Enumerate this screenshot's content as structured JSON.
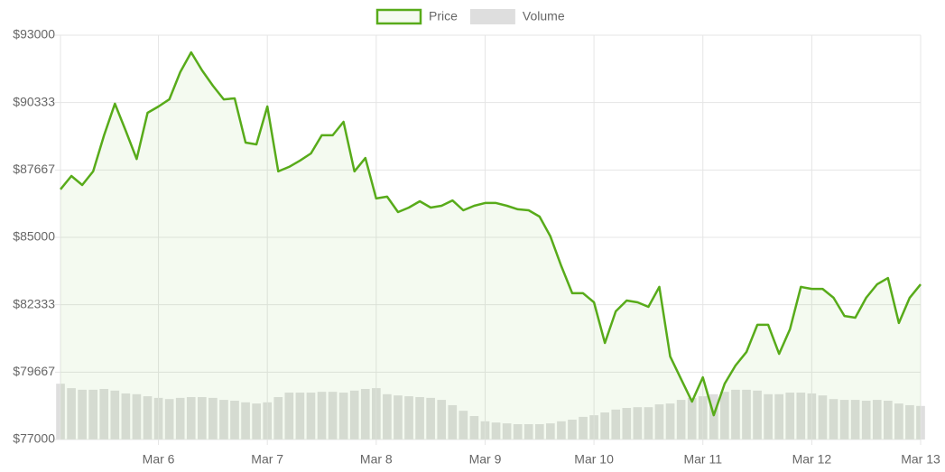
{
  "chart_data": {
    "type": "line",
    "x": [
      5.1,
      5.2,
      5.3,
      5.4,
      5.5,
      5.6,
      5.7,
      5.8,
      5.9,
      6.0,
      6.1,
      6.2,
      6.3,
      6.4,
      6.5,
      6.6,
      6.7,
      6.8,
      6.9,
      7.0,
      7.1,
      7.2,
      7.3,
      7.4,
      7.5,
      7.6,
      7.7,
      7.8,
      7.9,
      8.0,
      8.1,
      8.2,
      8.3,
      8.4,
      8.5,
      8.6,
      8.7,
      8.8,
      8.9,
      9.0,
      9.1,
      9.2,
      9.3,
      9.4,
      9.5,
      9.6,
      9.7,
      9.8,
      9.9,
      10.0,
      10.1,
      10.2,
      10.3,
      10.4,
      10.5,
      10.6,
      10.7,
      10.8,
      10.9,
      11.0,
      11.1,
      11.2,
      11.3,
      11.4,
      11.5,
      11.6,
      11.7,
      11.8,
      11.9,
      12.0,
      12.1,
      12.2,
      12.3,
      12.4,
      12.5,
      12.6,
      12.7,
      12.8,
      12.9,
      13.0
    ],
    "series": [
      {
        "name": "Price",
        "type": "line",
        "color": "#58ab1a",
        "fill": "rgba(110,190,60,0.08)",
        "values": [
          86900,
          87430,
          87070,
          87610,
          89040,
          90290,
          89210,
          88100,
          89930,
          90180,
          90460,
          91540,
          92320,
          91610,
          91000,
          90460,
          90500,
          88750,
          88680,
          90180,
          87610,
          87790,
          88040,
          88320,
          89040,
          89040,
          89570,
          87610,
          88140,
          86540,
          86610,
          86000,
          86180,
          86430,
          86180,
          86250,
          86460,
          86070,
          86250,
          86360,
          86360,
          86250,
          86110,
          86070,
          85820,
          85040,
          83860,
          82790,
          82790,
          82430,
          80820,
          82070,
          82500,
          82430,
          82250,
          83040,
          80290,
          79390,
          78500,
          79460,
          77960,
          79210,
          79930,
          80460,
          81540,
          81540,
          80390,
          81360,
          83040,
          82960,
          82960,
          82610,
          81890,
          81820,
          82610,
          83140,
          83390,
          81610,
          82610,
          83140
        ]
      },
      {
        "name": "Volume",
        "type": "bar",
        "axis": "y2",
        "color": "#dedede",
        "values": [
          13.8,
          12.7,
          12.3,
          12.3,
          12.5,
          12.1,
          11.4,
          11.2,
          10.7,
          10.3,
          10.0,
          10.3,
          10.5,
          10.5,
          10.3,
          9.8,
          9.6,
          9.2,
          8.9,
          9.2,
          10.5,
          11.6,
          11.6,
          11.6,
          11.8,
          11.8,
          11.6,
          12.1,
          12.5,
          12.7,
          11.2,
          10.9,
          10.7,
          10.5,
          10.3,
          9.8,
          8.5,
          7.1,
          5.8,
          4.5,
          4.2,
          4.0,
          3.8,
          3.8,
          3.8,
          4.0,
          4.5,
          4.9,
          5.6,
          6.0,
          6.7,
          7.4,
          7.8,
          8.0,
          8.0,
          8.7,
          8.9,
          9.8,
          10.3,
          10.7,
          11.2,
          11.8,
          12.3,
          12.3,
          12.1,
          11.2,
          11.2,
          11.6,
          11.6,
          11.4,
          10.9,
          10.0,
          9.8,
          9.8,
          9.6,
          9.8,
          9.6,
          8.9,
          8.5,
          8.3
        ]
      }
    ],
    "xlim": [
      5.1,
      13.0
    ],
    "xticks": [
      {
        "value": 6,
        "label": "Mar 6"
      },
      {
        "value": 7,
        "label": "Mar 7"
      },
      {
        "value": 8,
        "label": "Mar 8"
      },
      {
        "value": 9,
        "label": "Mar 9"
      },
      {
        "value": 10,
        "label": "Mar 10"
      },
      {
        "value": 11,
        "label": "Mar 11"
      },
      {
        "value": 12,
        "label": "Mar 12"
      },
      {
        "value": 13,
        "label": "Mar 13"
      }
    ],
    "ylim": [
      77000,
      93000
    ],
    "yticks": [
      {
        "value": 77000,
        "label": "$77000"
      },
      {
        "value": 79666.67,
        "label": "$79667"
      },
      {
        "value": 82333.33,
        "label": "$82333"
      },
      {
        "value": 85000,
        "label": "$85000"
      },
      {
        "value": 87666.67,
        "label": "$87667"
      },
      {
        "value": 90333.33,
        "label": "$90333"
      },
      {
        "value": 93000,
        "label": "$93000"
      }
    ],
    "y2lim": [
      0,
      100
    ],
    "grid": true,
    "legend": "top"
  }
}
